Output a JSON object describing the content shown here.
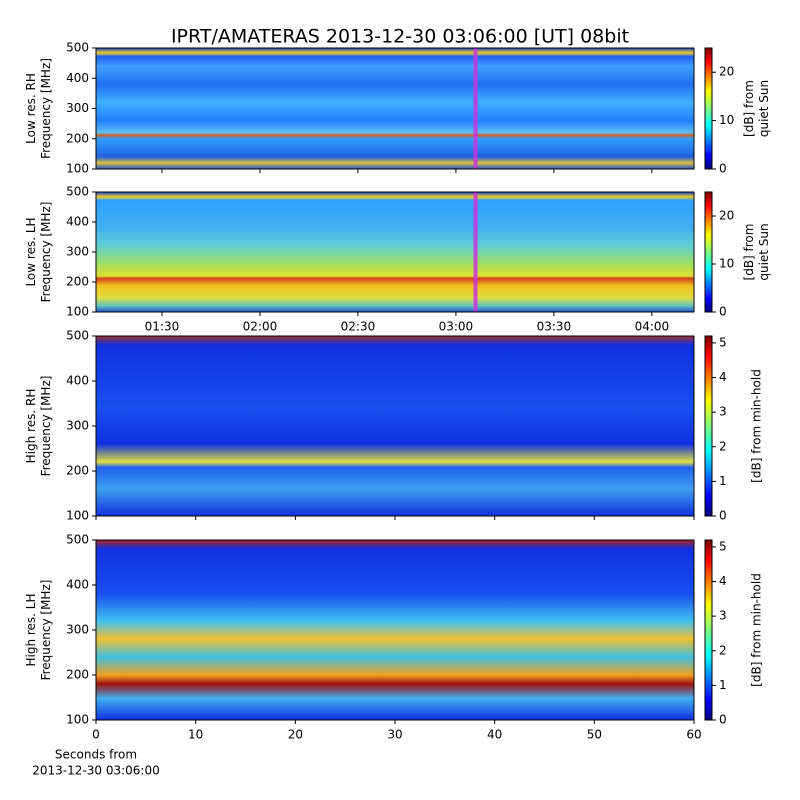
{
  "chart_data": [
    {
      "type": "heatmap",
      "title": "IPRT/AMATERAS 2013-12-30 03:06:00 [UT]   08bit",
      "ylabel": [
        "Low res. RH",
        "Frequency [MHz]"
      ],
      "xlim": [
        69.8,
        252.9
      ],
      "xticks": [
        90,
        120,
        150,
        180,
        210,
        240
      ],
      "ylim": [
        100,
        500
      ],
      "yticks": [
        100,
        200,
        300,
        400,
        500
      ],
      "marker_x": 186,
      "marker_color": "#cc33dd",
      "colorbar_label": [
        "[dB] from",
        "quiet Sun"
      ],
      "clim": [
        0,
        25
      ],
      "cticks": [
        0,
        10,
        20
      ]
    },
    {
      "type": "heatmap",
      "ylabel": [
        "Low res. LH",
        "Frequency [MHz]"
      ],
      "xlim": [
        69.8,
        252.9
      ],
      "xticks": [
        {
          "value": 90,
          "label": "01:30"
        },
        {
          "value": 120,
          "label": "02:00"
        },
        {
          "value": 150,
          "label": "02:30"
        },
        {
          "value": 180,
          "label": "03:00"
        },
        {
          "value": 210,
          "label": "03:30"
        },
        {
          "value": 240,
          "label": "04:00"
        }
      ],
      "ylim": [
        100,
        500
      ],
      "yticks": [
        100,
        200,
        300,
        400,
        500
      ],
      "marker_x": 186,
      "marker_color": "#cc33dd",
      "colorbar_label": [
        "[dB] from",
        "quiet Sun"
      ],
      "clim": [
        0,
        25
      ],
      "cticks": [
        0,
        10,
        20
      ]
    },
    {
      "type": "heatmap",
      "ylabel": [
        "High res. RH",
        "Frequency [MHz]"
      ],
      "xlim": [
        0,
        60
      ],
      "xticks": [
        0,
        10,
        20,
        30,
        40,
        50,
        60
      ],
      "ylim": [
        100,
        500
      ],
      "yticks": [
        100,
        200,
        300,
        400,
        500
      ],
      "colorbar_label": [
        "[dB] from min-hold"
      ],
      "clim": [
        0,
        5.2
      ],
      "cticks": [
        0,
        1,
        2,
        3,
        4,
        5
      ]
    },
    {
      "type": "heatmap",
      "ylabel": [
        "High res. LH",
        "Frequency [MHz]"
      ],
      "xlim": [
        0,
        60
      ],
      "xticks": [
        0,
        10,
        20,
        30,
        40,
        50,
        60
      ],
      "xlabel": [
        "Seconds from",
        "2013-12-30 03:06:00"
      ],
      "ylim": [
        100,
        500
      ],
      "yticks": [
        100,
        200,
        300,
        400,
        500
      ],
      "colorbar_label": [
        "[dB] from min-hold"
      ],
      "clim": [
        0,
        5.2
      ],
      "cticks": [
        0,
        1,
        2,
        3,
        4,
        5
      ]
    }
  ]
}
